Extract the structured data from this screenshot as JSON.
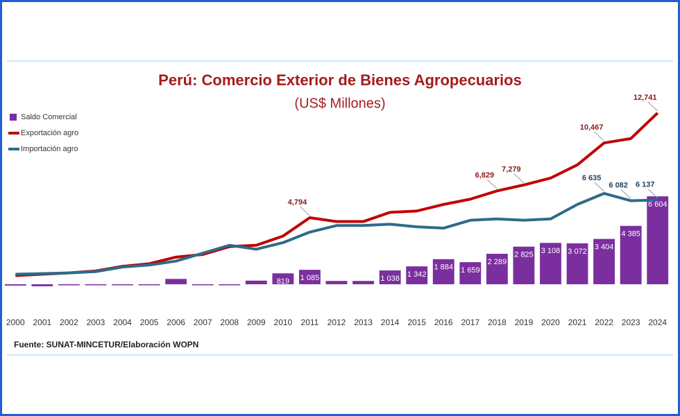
{
  "chart_data": {
    "type": "bar_line",
    "title": "Perú: Comercio Exterior de Bienes Agropecuarios",
    "subtitle": "(US$ Millones)",
    "source": "Fuente: SUNAT-MINCETUR/Elaboración WOPN",
    "categories": [
      "2000",
      "2001",
      "2002",
      "2003",
      "2004",
      "2005",
      "2006",
      "2007",
      "2008",
      "2009",
      "2010",
      "2011",
      "2012",
      "2013",
      "2014",
      "2015",
      "2016",
      "2017",
      "2018",
      "2019",
      "2020",
      "2021",
      "2022",
      "2023",
      "2024"
    ],
    "ylim": [
      -1980,
      14060
    ],
    "y2lim": [
      -2260,
      13950
    ],
    "legend": "top-left",
    "series": [
      {
        "name": "Saldo Comercial",
        "type": "bar",
        "color": "#7b2f9e",
        "values": [
          -100,
          -150,
          -80,
          -60,
          -20,
          -30,
          400,
          -40,
          -60,
          270,
          819,
          1085,
          250,
          250,
          1038,
          1342,
          1884,
          1659,
          2289,
          2825,
          3108,
          3072,
          3404,
          4385,
          6604
        ],
        "value_labels": [
          null,
          null,
          null,
          null,
          null,
          null,
          null,
          null,
          null,
          null,
          "819",
          "1 085",
          null,
          null,
          "1 038",
          "1 342",
          "1 884",
          "1 659",
          "2 289",
          "2 825",
          "3 108",
          "3 072",
          "3 404",
          "4 385",
          "6 604"
        ]
      },
      {
        "name": "Exportación agro",
        "type": "line",
        "axis": "y2",
        "color": "#c00000",
        "values": [
          400,
          500,
          600,
          750,
          1100,
          1300,
          1800,
          2000,
          2600,
          2700,
          3400,
          4794,
          4500,
          4500,
          5200,
          5300,
          5800,
          6200,
          6829,
          7279,
          7800,
          8800,
          10467,
          10800,
          12741
        ],
        "value_labels": [
          null,
          null,
          null,
          null,
          null,
          null,
          null,
          null,
          null,
          null,
          null,
          "4,794",
          null,
          null,
          null,
          null,
          null,
          null,
          "6,829",
          "7,279",
          null,
          null,
          "10,467",
          null,
          "12,741"
        ]
      },
      {
        "name": "Importación agro",
        "type": "line",
        "axis": "y2",
        "color": "#2e6b8a",
        "values": [
          500,
          550,
          600,
          700,
          1050,
          1200,
          1500,
          2100,
          2700,
          2400,
          2900,
          3700,
          4200,
          4200,
          4300,
          4100,
          4000,
          4600,
          4700,
          4600,
          4700,
          5800,
          6635,
          6082,
          6137
        ],
        "value_labels": [
          null,
          null,
          null,
          null,
          null,
          null,
          null,
          null,
          null,
          null,
          null,
          null,
          null,
          null,
          null,
          null,
          null,
          null,
          null,
          null,
          null,
          null,
          "6 635",
          "6 082",
          "6 137"
        ]
      }
    ]
  }
}
